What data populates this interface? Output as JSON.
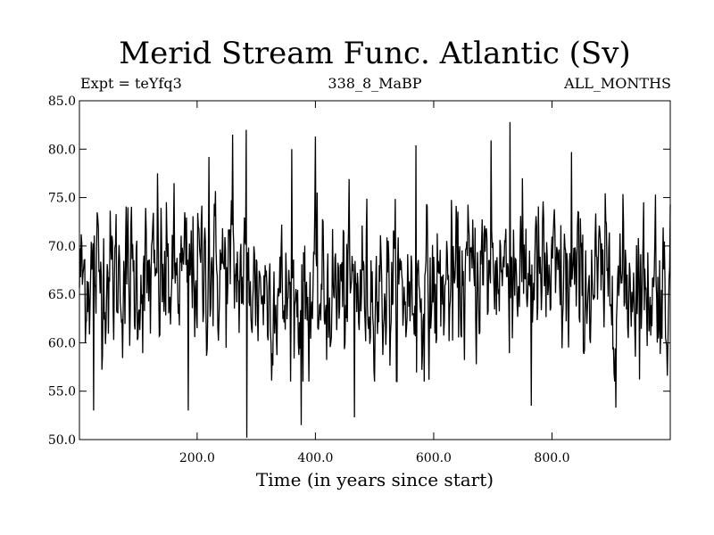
{
  "chart_data": {
    "type": "line",
    "title": "Merid Stream Func. Atlantic (Sv)",
    "subtitle_left": "Expt = teYfq3",
    "subtitle_center": "338_8_MaBP",
    "subtitle_right": "ALL_MONTHS",
    "xlabel": "Time (in years since start)",
    "ylabel": "",
    "xlim": [
      1,
      1000
    ],
    "ylim": [
      50,
      85
    ],
    "xticks": [
      200,
      400,
      600,
      800
    ],
    "xtick_labels": [
      "200.0",
      "400.0",
      "600.0",
      "800.0"
    ],
    "yticks": [
      50,
      55,
      60,
      65,
      70,
      75,
      80,
      85
    ],
    "ytick_labels": [
      "50.0",
      "55.0",
      "60.0",
      "65.0",
      "70.0",
      "75.0",
      "80.0",
      "85.0"
    ],
    "grid": false,
    "legend": "none",
    "line_color": "#000000",
    "series": [
      {
        "mean": 66,
        "noise_sd": 4.2,
        "n_points": 1000,
        "extremes": [
          {
            "x": 25,
            "y": 53.0
          },
          {
            "x": 133,
            "y": 77.5
          },
          {
            "x": 185,
            "y": 53.0
          },
          {
            "x": 220,
            "y": 79.2
          },
          {
            "x": 260,
            "y": 81.5
          },
          {
            "x": 283,
            "y": 82.0
          },
          {
            "x": 284,
            "y": 50.2
          },
          {
            "x": 360,
            "y": 80.0
          },
          {
            "x": 376,
            "y": 51.5
          },
          {
            "x": 400,
            "y": 81.3
          },
          {
            "x": 466,
            "y": 52.3
          },
          {
            "x": 570,
            "y": 80.4
          },
          {
            "x": 697,
            "y": 80.9
          },
          {
            "x": 729,
            "y": 82.8
          },
          {
            "x": 765,
            "y": 53.5
          },
          {
            "x": 833,
            "y": 79.7
          },
          {
            "x": 908,
            "y": 53.3
          },
          {
            "x": 975,
            "y": 75.3
          }
        ]
      }
    ]
  }
}
